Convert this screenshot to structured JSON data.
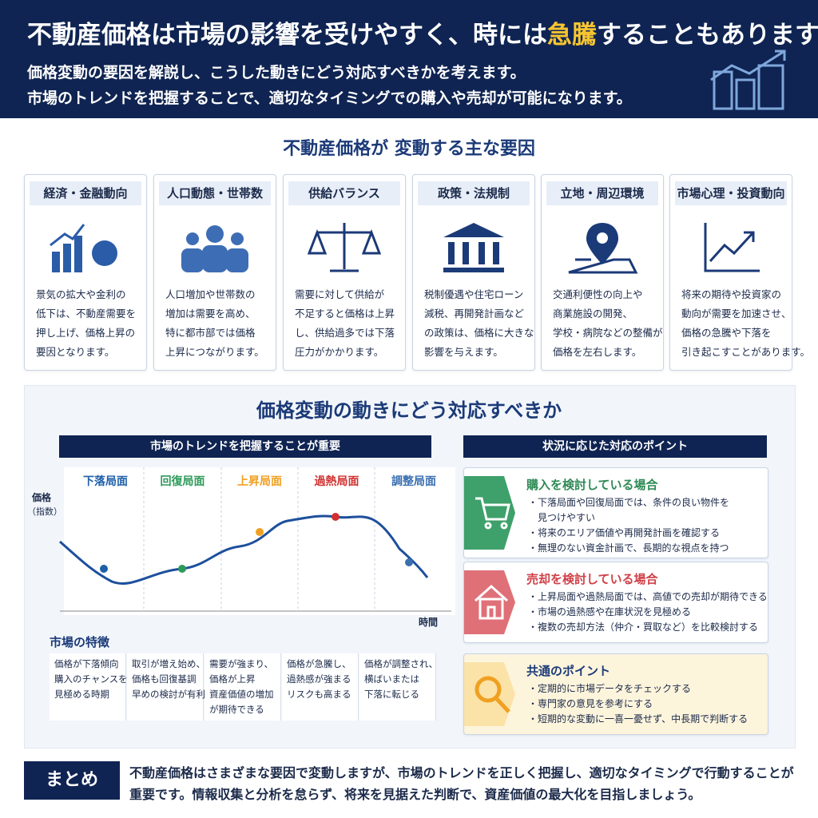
{
  "header": {
    "title": [
      "不動産価格は市場の影響を受けやすく、時には",
      "急騰",
      "することもあります"
    ],
    "lines": [
      "価格変動の要因を解説し、こうした動きにどう対応すべきかを考えます。",
      "市場のトレンドを把握することで、適切なタイミングでの購入や売却が可能になります。"
    ]
  },
  "factors": {
    "heading": "不動産価格が 変動する主な要因",
    "items": [
      {
        "title": "経済・金融動向",
        "text": [
          "景気の拡大や金利の",
          "低下は、不動産需要を",
          "押し上げ、価格上昇の",
          "要因となります。"
        ]
      },
      {
        "title": "人口動態・世帯数",
        "text": [
          "人口増加や世帯数の",
          "増加は需要を高め、",
          "特に都市部では価格",
          "上昇につながります。"
        ]
      },
      {
        "title": "供給バランス",
        "text": [
          "需要に対して供給が",
          "不足すると価格は上昇",
          "し、供給過多では下落",
          "圧力がかかります。"
        ]
      },
      {
        "title": "政策・法規制",
        "text": [
          "税制優遇や住宅ローン",
          "減税、再開発計画など",
          "の政策は、価格に大きな",
          "影響を与えます。"
        ]
      },
      {
        "title": "立地・周辺環境",
        "text": [
          "交通利便性の向上や",
          "商業施設の開発、",
          "学校・病院などの整備が",
          "価格を左右します。"
        ]
      },
      {
        "title": "市場心理・投資動向",
        "text": [
          "将来の期待や投資家の",
          "動向が需要を加速させ、",
          "価格の急騰や下落を",
          "引き起こすことがあります。"
        ]
      }
    ]
  },
  "response": {
    "heading": "価格変動の動きにどう対応すべきか",
    "trend": {
      "heading": "市場のトレンドを把握することが重要",
      "phases": [
        "下落局面",
        "回復局面",
        "上昇局面",
        "過熱局面",
        "調整局面"
      ],
      "y_label": "価格",
      "y_unit": "（指数）",
      "x_label": "時間",
      "features_heading": "市場の特徴",
      "features": [
        [
          "価格が下落傾向",
          "購入のチャンスを",
          "見極める時期"
        ],
        [
          "取引が増え始め、",
          "価格も回復基調",
          "早めの検討が有利"
        ],
        [
          "需要が強まり、",
          "価格が上昇",
          "資産価値の増加",
          "が期待できる"
        ],
        [
          "価格が急騰し、",
          "過熱感が強まる",
          "リスクも高まる"
        ],
        [
          "価格が調整され、",
          "横ばいまたは",
          "下落に転じる"
        ]
      ]
    },
    "points": {
      "heading": "状況に応じた対応のポイント",
      "cards": [
        {
          "title": "購入を検討している場合",
          "bullets": [
            "・下落局面や回復局面では、条件の良い物件を",
            "　見つけやすい",
            "・将来のエリア価値や再開発計画を確認する",
            "・無理のない資金計画で、長期的な視点を持つ"
          ]
        },
        {
          "title": "売却を検討している場合",
          "bullets": [
            "・上昇局面や過熱局面では、高値での売却が期待できる",
            "・市場の過熱感や在庫状況を見極める",
            "・複数の売却方法（仲介・買取など）を比較検討する"
          ]
        },
        {
          "title": "共通のポイント",
          "bullets": [
            "・定期的に市場データをチェックする",
            "・専門家の意見を参考にする",
            "・短期的な変動に一喜一憂せず、中長期で判断する"
          ]
        }
      ]
    }
  },
  "summary": {
    "label": "まとめ",
    "text": [
      "不動産価格はさまざまな要因で変動しますが、市場のトレンドを正しく把握し、適切なタイミングで行動することが",
      "重要です。情報収集と分析を怠らず、将来を見据えた判断で、資産価値の最大化を目指しましょう。"
    ]
  }
}
